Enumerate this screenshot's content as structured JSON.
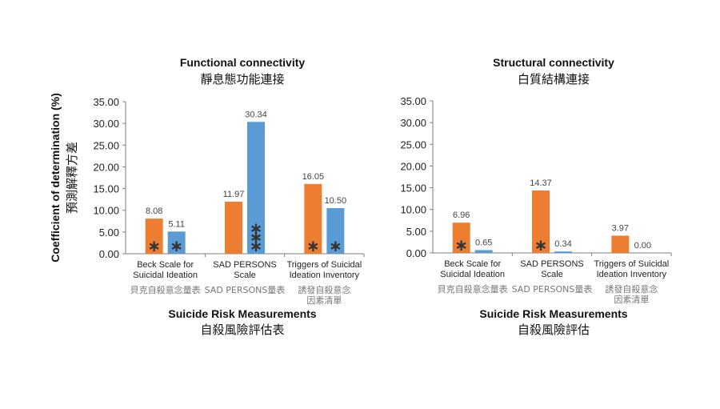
{
  "colors": {
    "orange": "#ED7D31",
    "blue": "#5B9BD5",
    "axis": "#7f7f7f"
  },
  "y_axis_label": {
    "en": "Coefficient of determination (%)",
    "zh": "預測解釋方差"
  },
  "chart_data": [
    {
      "type": "bar",
      "title": "Functional connectivity",
      "subtitle": "靜息態功能連接",
      "xlabel": "Suicide Risk Measurements",
      "xlabel_zh": "自殺風險評估表",
      "ylim": [
        0,
        35
      ],
      "yticks": [
        "0.00",
        "5.00",
        "10.00",
        "15.00",
        "20.00",
        "25.00",
        "30.00",
        "35.00"
      ],
      "grid": false,
      "categories": [
        {
          "en": [
            "Beck Scale for",
            "Suicidal Ideation"
          ],
          "zh": [
            "貝克自殺意念量表"
          ]
        },
        {
          "en": [
            "SAD PERSONS",
            "Scale"
          ],
          "zh": [
            "SAD PERSONS量表"
          ]
        },
        {
          "en": [
            "Triggers of Suicidal",
            "Ideation Inventory"
          ],
          "zh": [
            "誘發自殺意念",
            "因素清單"
          ]
        }
      ],
      "series": [
        {
          "color": "orange",
          "values": [
            8.08,
            11.97,
            16.05
          ],
          "labels": [
            "8.08",
            "11.97",
            "16.05"
          ],
          "significance": [
            "*",
            "",
            "*"
          ]
        },
        {
          "color": "blue",
          "values": [
            5.11,
            30.34,
            10.5
          ],
          "labels": [
            "5.11",
            "30.34",
            "10.50"
          ],
          "significance": [
            "*",
            "***",
            "*"
          ]
        }
      ]
    },
    {
      "type": "bar",
      "title": "Structural connectivity",
      "subtitle": "白質結構連接",
      "xlabel": "Suicide Risk Measurements",
      "xlabel_zh": "自殺風險評估",
      "ylim": [
        0,
        35
      ],
      "yticks": [
        "0.00",
        "5.00",
        "10.00",
        "15.00",
        "20.00",
        "25.00",
        "30.00",
        "35.00"
      ],
      "grid": false,
      "categories": [
        {
          "en": [
            "Beck Scale for",
            "Suicidal Ideation"
          ],
          "zh": [
            "貝克自殺意念量表"
          ]
        },
        {
          "en": [
            "SAD PERSONS",
            "Scale"
          ],
          "zh": [
            "SAD PERSONS量表"
          ]
        },
        {
          "en": [
            "Triggers of Suicidal",
            "Ideation Inventory"
          ],
          "zh": [
            "誘發自殺意念",
            "因素清單"
          ]
        }
      ],
      "series": [
        {
          "color": "orange",
          "values": [
            6.96,
            14.37,
            3.97
          ],
          "labels": [
            "6.96",
            "14.37",
            "3.97"
          ],
          "significance": [
            "*",
            "*",
            ""
          ]
        },
        {
          "color": "blue",
          "values": [
            0.65,
            0.34,
            0.0
          ],
          "labels": [
            "0.65",
            "0.34",
            "0.00"
          ],
          "significance": [
            "",
            "",
            ""
          ]
        }
      ]
    }
  ]
}
